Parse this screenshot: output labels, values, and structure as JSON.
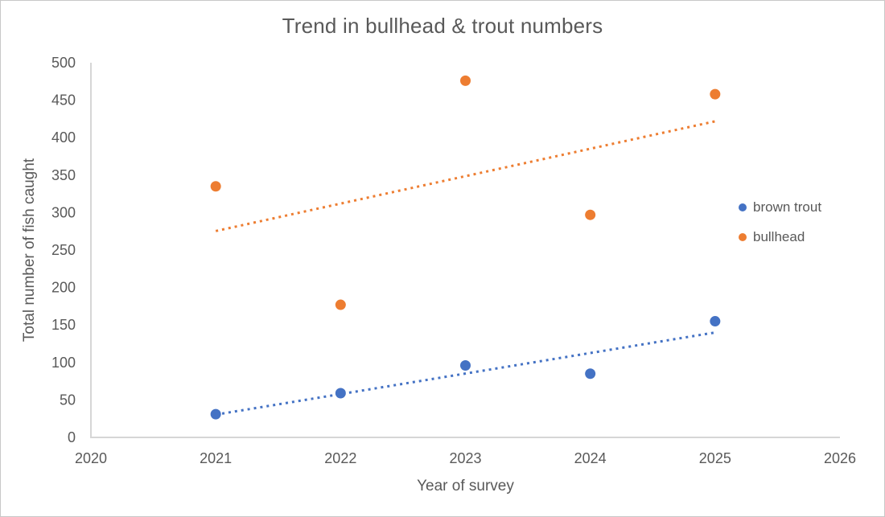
{
  "window": {
    "background": "#ffffff",
    "border_color": "#c8c8c8"
  },
  "chart_data": {
    "type": "scatter",
    "title": "Trend in bullhead & trout numbers",
    "xlabel": "Year of survey",
    "ylabel": "Total number of fish caught",
    "x": [
      2021,
      2022,
      2023,
      2024,
      2025
    ],
    "series": [
      {
        "name": "brown trout",
        "color": "#4472C4",
        "values": [
          31,
          59,
          96,
          85,
          155
        ],
        "trendline": "linear-dotted"
      },
      {
        "name": "bullhead",
        "color": "#ED7D31",
        "values": [
          335,
          177,
          476,
          297,
          458
        ],
        "trendline": "linear-dotted"
      }
    ],
    "xlim": [
      2020,
      2026
    ],
    "ylim": [
      0,
      500
    ],
    "x_ticks": [
      2020,
      2021,
      2022,
      2023,
      2024,
      2025,
      2026
    ],
    "y_ticks": [
      0,
      50,
      100,
      150,
      200,
      250,
      300,
      350,
      400,
      450,
      500
    ],
    "grid": false,
    "legend_position": "right",
    "marker_radius": 6.5,
    "axis_color": "#d6d6d6",
    "text_color": "#595959"
  }
}
